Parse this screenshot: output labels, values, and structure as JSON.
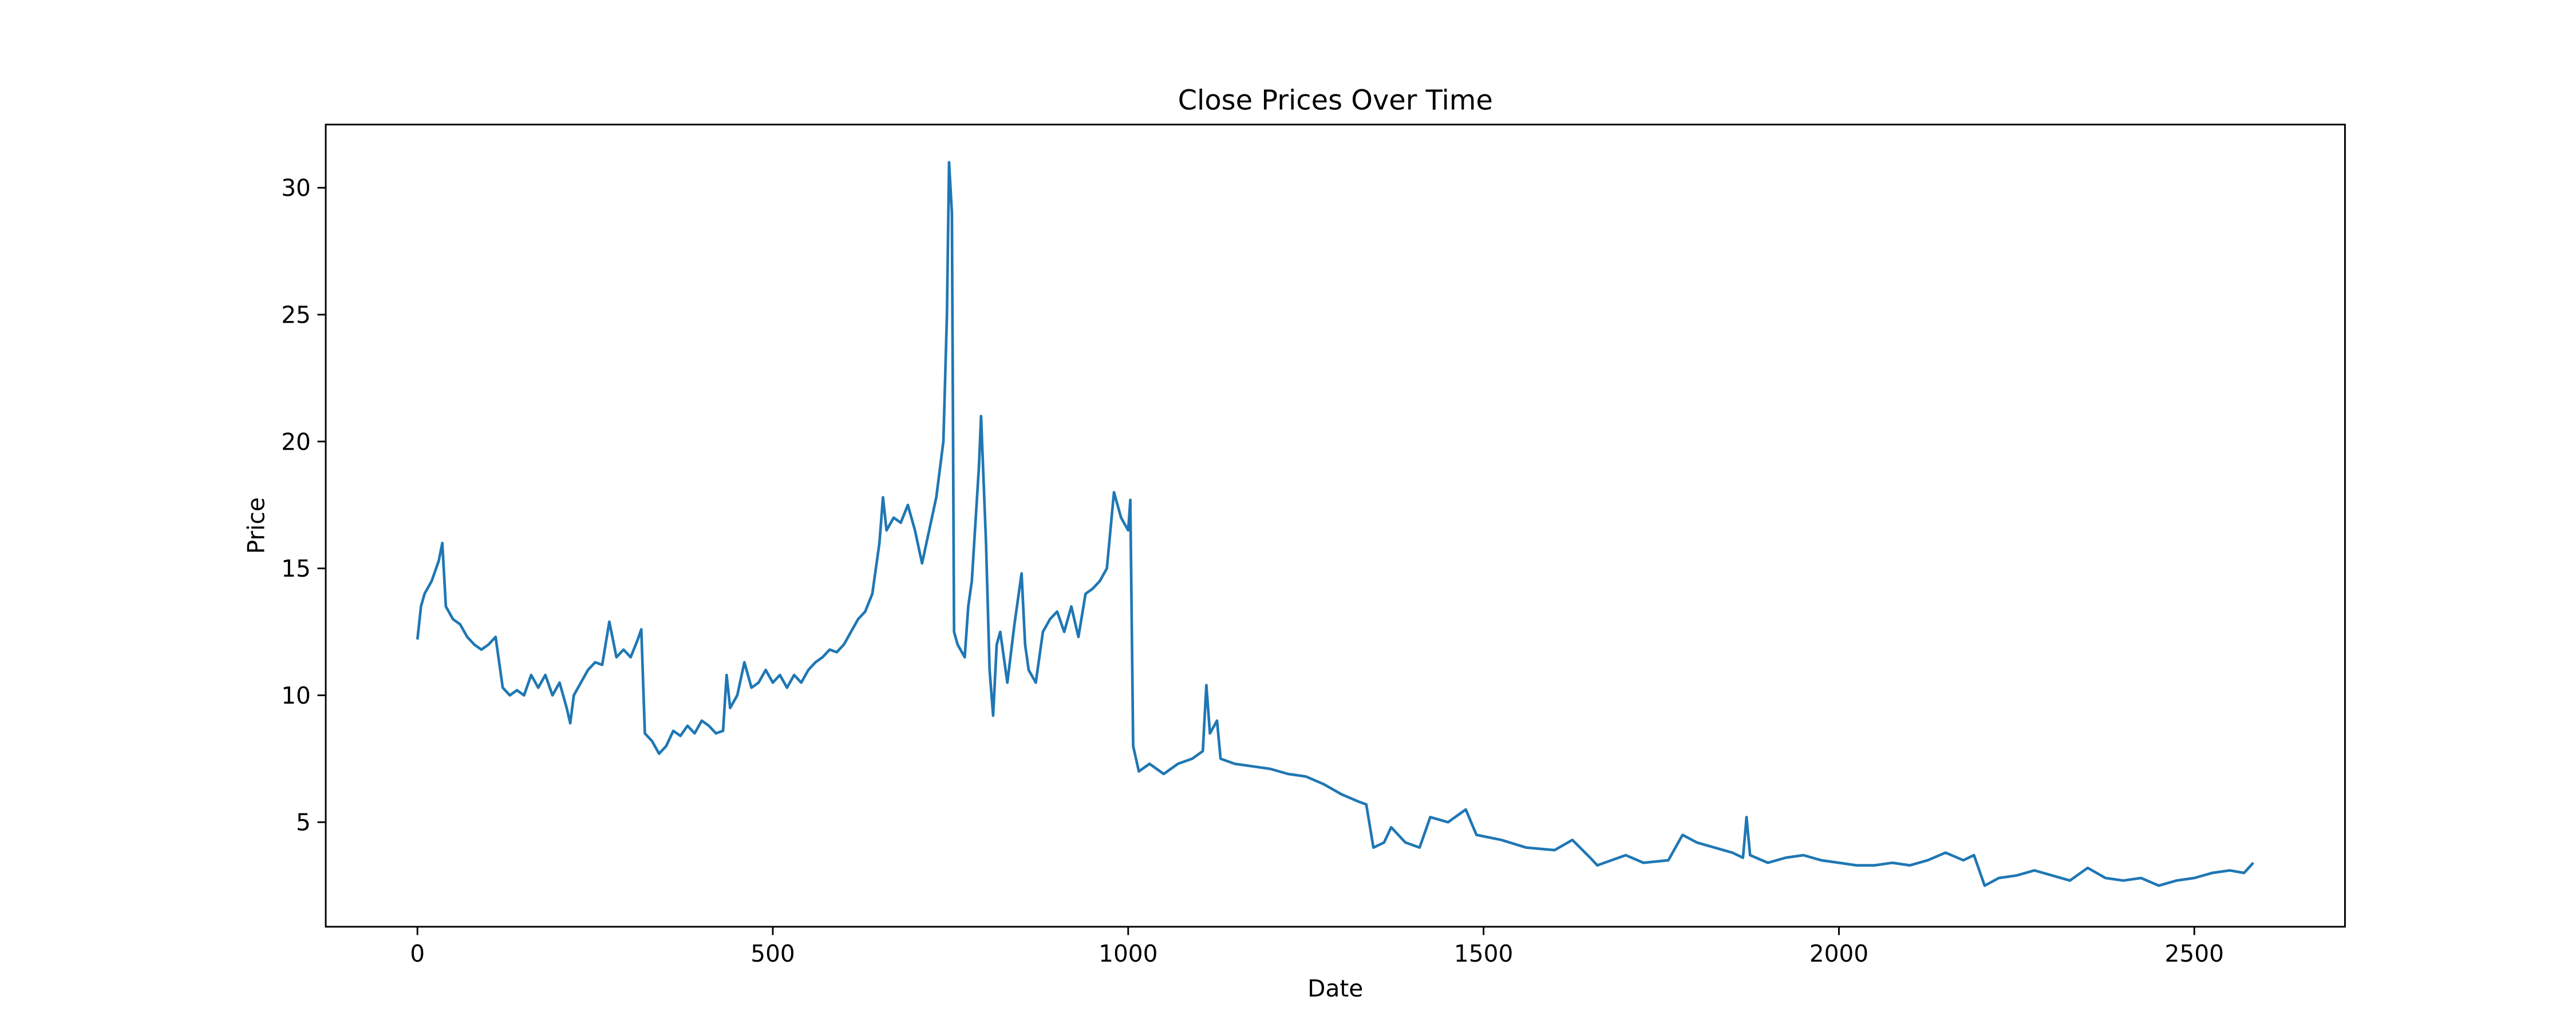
{
  "chart_data": {
    "type": "line",
    "title": "Close Prices Over Time",
    "xlabel": "Date",
    "ylabel": "Price",
    "x": [
      0,
      5,
      10,
      20,
      30,
      35,
      40,
      50,
      60,
      70,
      80,
      90,
      100,
      110,
      120,
      130,
      140,
      150,
      160,
      170,
      180,
      190,
      200,
      210,
      215,
      220,
      230,
      240,
      250,
      260,
      270,
      280,
      290,
      300,
      310,
      315,
      320,
      330,
      340,
      350,
      360,
      370,
      380,
      390,
      400,
      410,
      420,
      430,
      435,
      440,
      450,
      460,
      470,
      480,
      490,
      500,
      510,
      520,
      530,
      540,
      550,
      560,
      570,
      580,
      590,
      600,
      610,
      620,
      630,
      640,
      650,
      655,
      660,
      670,
      680,
      690,
      700,
      710,
      720,
      730,
      740,
      745,
      748,
      752,
      755,
      760,
      770,
      775,
      780,
      790,
      793,
      800,
      805,
      810,
      815,
      820,
      830,
      840,
      850,
      855,
      860,
      870,
      880,
      890,
      900,
      910,
      920,
      930,
      940,
      950,
      960,
      970,
      980,
      990,
      1000,
      1003,
      1007,
      1015,
      1030,
      1050,
      1070,
      1090,
      1105,
      1110,
      1115,
      1125,
      1130,
      1150,
      1175,
      1200,
      1225,
      1250,
      1275,
      1300,
      1325,
      1335,
      1345,
      1360,
      1370,
      1390,
      1410,
      1425,
      1450,
      1475,
      1490,
      1525,
      1560,
      1600,
      1625,
      1650,
      1660,
      1700,
      1725,
      1760,
      1780,
      1800,
      1825,
      1850,
      1865,
      1870,
      1875,
      1900,
      1925,
      1950,
      1975,
      2000,
      2025,
      2050,
      2075,
      2100,
      2125,
      2150,
      2175,
      2190,
      2205,
      2225,
      2250,
      2275,
      2300,
      2325,
      2350,
      2375,
      2400,
      2425,
      2450,
      2475,
      2500,
      2525,
      2550,
      2570,
      2583
    ],
    "series": [
      {
        "name": "Close",
        "color": "#1f77b4",
        "values": [
          12.2,
          13.5,
          14.0,
          14.5,
          15.3,
          16.0,
          13.5,
          13.0,
          12.8,
          12.3,
          12.0,
          11.8,
          12.0,
          12.3,
          10.3,
          10.0,
          10.2,
          10.0,
          10.8,
          10.3,
          10.8,
          10.0,
          10.5,
          9.5,
          8.9,
          10.0,
          10.5,
          11.0,
          11.3,
          11.2,
          12.9,
          11.5,
          11.8,
          11.5,
          12.2,
          12.6,
          8.5,
          8.2,
          7.7,
          8.0,
          8.6,
          8.4,
          8.8,
          8.5,
          9.0,
          8.8,
          8.5,
          8.6,
          10.8,
          9.5,
          10.0,
          11.3,
          10.3,
          10.5,
          11.0,
          10.5,
          10.8,
          10.3,
          10.8,
          10.5,
          11.0,
          11.3,
          11.5,
          11.8,
          11.7,
          12.0,
          12.5,
          13.0,
          13.3,
          14.0,
          16.0,
          17.8,
          16.5,
          17.0,
          16.8,
          17.5,
          16.5,
          15.2,
          16.5,
          17.8,
          20.0,
          25.0,
          31.0,
          29.0,
          12.5,
          12.0,
          11.5,
          13.5,
          14.5,
          19.0,
          21.0,
          16.0,
          11.0,
          9.2,
          12.0,
          12.5,
          10.5,
          12.8,
          14.8,
          12.0,
          11.0,
          10.5,
          12.5,
          13.0,
          13.3,
          12.5,
          13.5,
          12.3,
          14.0,
          14.2,
          14.5,
          15.0,
          18.0,
          17.0,
          16.5,
          17.7,
          8.0,
          7.0,
          7.3,
          6.9,
          7.3,
          7.5,
          7.8,
          10.4,
          8.5,
          9.0,
          7.5,
          7.3,
          7.2,
          7.1,
          6.9,
          6.8,
          6.5,
          6.1,
          5.8,
          5.7,
          4.0,
          4.2,
          4.8,
          4.2,
          4.0,
          5.2,
          5.0,
          5.5,
          4.5,
          4.3,
          4.0,
          3.9,
          4.3,
          3.6,
          3.3,
          3.7,
          3.4,
          3.5,
          4.5,
          4.2,
          4.0,
          3.8,
          3.6,
          5.2,
          3.7,
          3.4,
          3.6,
          3.7,
          3.5,
          3.4,
          3.3,
          3.3,
          3.4,
          3.3,
          3.5,
          3.8,
          3.5,
          3.7,
          2.5,
          2.8,
          2.9,
          3.1,
          2.9,
          2.7,
          3.2,
          2.8,
          2.7,
          2.8,
          2.5,
          2.7,
          2.8,
          3.0,
          3.1,
          3.0,
          3.4
        ]
      }
    ],
    "xlim": [
      -129,
      2712
    ],
    "ylim": [
      0.88,
      32.49
    ],
    "xticks": [
      0,
      500,
      1000,
      1500,
      2000,
      2500
    ],
    "yticks": [
      5,
      10,
      15,
      20,
      25,
      30
    ]
  }
}
